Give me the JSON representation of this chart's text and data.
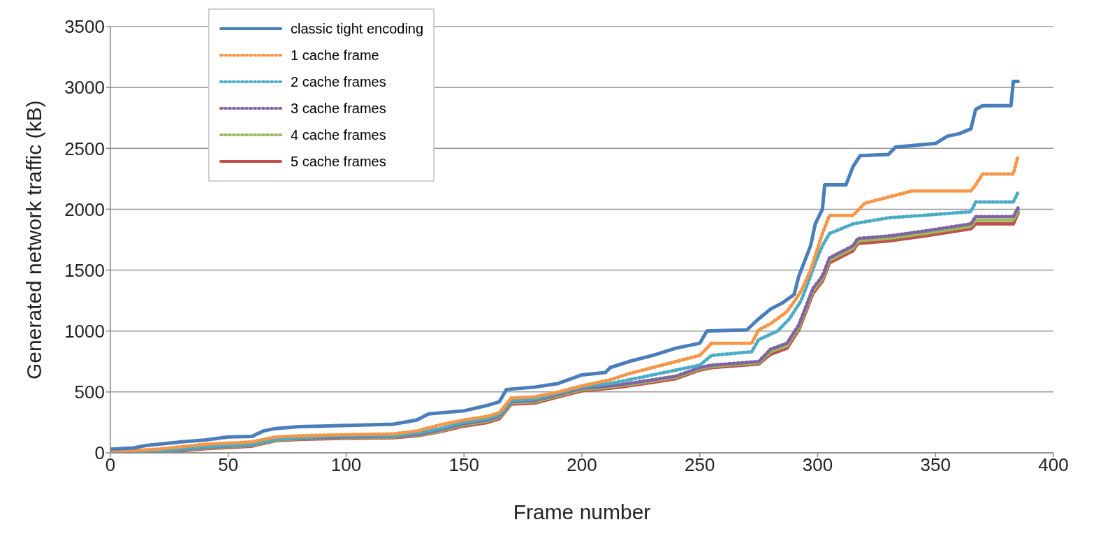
{
  "chart_data": {
    "type": "line",
    "xlabel": "Frame number",
    "ylabel": "Generated network traffic (kB)",
    "xlim": [
      0,
      400
    ],
    "xticks": [
      0,
      50,
      100,
      150,
      200,
      250,
      300,
      350,
      400
    ],
    "ylim": [
      0,
      3500
    ],
    "yticks": [
      0,
      500,
      1000,
      1500,
      2000,
      2500,
      3000,
      3500
    ],
    "grid": "y",
    "legend": "top left",
    "marker": "none",
    "series": [
      {
        "name": "classic tight  encoding",
        "color": "#4a7ebb",
        "line_style": "solid",
        "x": [
          0,
          10,
          15,
          20,
          30,
          40,
          50,
          60,
          65,
          70,
          80,
          90,
          100,
          120,
          130,
          135,
          150,
          160,
          165,
          168,
          180,
          190,
          200,
          210,
          212,
          220,
          230,
          240,
          250,
          253,
          270,
          275,
          280,
          285,
          290,
          292,
          295,
          297,
          299,
          302,
          303,
          312,
          315,
          318,
          330,
          333,
          350,
          355,
          360,
          365,
          367,
          370,
          382,
          383,
          385
        ],
        "values": [
          30,
          40,
          60,
          70,
          90,
          105,
          130,
          135,
          180,
          200,
          215,
          220,
          225,
          235,
          270,
          320,
          345,
          390,
          420,
          520,
          540,
          570,
          640,
          660,
          700,
          750,
          800,
          860,
          900,
          1000,
          1010,
          1100,
          1180,
          1230,
          1300,
          1450,
          1600,
          1700,
          1880,
          2000,
          2200,
          2200,
          2350,
          2440,
          2450,
          2510,
          2540,
          2600,
          2620,
          2660,
          2820,
          2850,
          2850,
          3050,
          3050
        ]
      },
      {
        "name": "1 cache frame",
        "color": "#f79646",
        "line_style": "dotted",
        "x": [
          0,
          20,
          40,
          60,
          70,
          80,
          100,
          120,
          130,
          140,
          150,
          160,
          165,
          170,
          180,
          190,
          200,
          205,
          212,
          220,
          230,
          240,
          250,
          255,
          272,
          275,
          280,
          287,
          290,
          293,
          297,
          300,
          302,
          305,
          315,
          320,
          330,
          340,
          365,
          367,
          370,
          383,
          385
        ],
        "values": [
          10,
          30,
          70,
          90,
          130,
          140,
          150,
          155,
          180,
          230,
          270,
          300,
          330,
          450,
          460,
          500,
          550,
          570,
          600,
          650,
          700,
          750,
          800,
          900,
          900,
          1010,
          1060,
          1160,
          1240,
          1330,
          1500,
          1680,
          1800,
          1950,
          1950,
          2050,
          2100,
          2150,
          2150,
          2200,
          2290,
          2290,
          2440
        ]
      },
      {
        "name": "2 cache frames",
        "color": "#4bacc6",
        "line_style": "dotted",
        "x": [
          0,
          20,
          40,
          60,
          70,
          80,
          100,
          120,
          130,
          140,
          150,
          160,
          165,
          170,
          180,
          190,
          200,
          212,
          220,
          230,
          240,
          250,
          255,
          272,
          275,
          283,
          288,
          293,
          296,
          299,
          302,
          305,
          315,
          330,
          345,
          365,
          367,
          383,
          385
        ],
        "values": [
          5,
          15,
          50,
          70,
          110,
          125,
          140,
          140,
          160,
          200,
          250,
          280,
          310,
          430,
          440,
          490,
          540,
          570,
          600,
          640,
          680,
          720,
          800,
          830,
          930,
          1000,
          1100,
          1250,
          1400,
          1560,
          1700,
          1800,
          1880,
          1930,
          1950,
          1980,
          2060,
          2060,
          2140
        ]
      },
      {
        "name": "3 cache frames",
        "color": "#8064a2",
        "line_style": "dotted",
        "x": [
          0,
          20,
          40,
          60,
          70,
          80,
          100,
          120,
          130,
          140,
          150,
          160,
          165,
          170,
          180,
          190,
          200,
          212,
          220,
          230,
          240,
          250,
          255,
          275,
          280,
          287,
          292,
          295,
          298,
          302,
          305,
          315,
          317,
          330,
          345,
          365,
          367,
          383,
          385
        ],
        "values": [
          0,
          10,
          45,
          65,
          110,
          120,
          130,
          135,
          150,
          190,
          240,
          270,
          300,
          420,
          430,
          480,
          530,
          550,
          570,
          600,
          630,
          700,
          720,
          750,
          850,
          900,
          1050,
          1200,
          1350,
          1450,
          1600,
          1700,
          1760,
          1780,
          1820,
          1880,
          1940,
          1940,
          2010
        ]
      },
      {
        "name": "4 cache frames",
        "color": "#9bbb59",
        "line_style": "dotted",
        "x": [
          0,
          20,
          40,
          60,
          70,
          80,
          100,
          120,
          130,
          140,
          150,
          160,
          165,
          170,
          180,
          190,
          200,
          212,
          220,
          230,
          240,
          250,
          255,
          275,
          280,
          287,
          292,
          295,
          298,
          302,
          305,
          315,
          317,
          330,
          345,
          365,
          367,
          383,
          385
        ],
        "values": [
          0,
          5,
          40,
          60,
          105,
          115,
          125,
          130,
          145,
          180,
          230,
          260,
          290,
          410,
          420,
          470,
          520,
          540,
          560,
          590,
          620,
          690,
          710,
          740,
          830,
          880,
          1030,
          1180,
          1330,
          1430,
          1580,
          1680,
          1740,
          1760,
          1800,
          1860,
          1910,
          1910,
          1990
        ]
      },
      {
        "name": "5 cache frames",
        "color": "#c0504d",
        "line_style": "solid",
        "x": [
          0,
          20,
          40,
          60,
          70,
          80,
          100,
          120,
          130,
          140,
          150,
          160,
          165,
          170,
          180,
          190,
          200,
          212,
          220,
          230,
          240,
          250,
          255,
          275,
          280,
          287,
          292,
          295,
          298,
          302,
          305,
          315,
          317,
          330,
          345,
          365,
          367,
          383,
          385
        ],
        "values": [
          0,
          0,
          35,
          55,
          100,
          110,
          120,
          125,
          140,
          175,
          220,
          250,
          280,
          400,
          410,
          460,
          510,
          530,
          550,
          580,
          610,
          680,
          700,
          730,
          810,
          860,
          1010,
          1160,
          1310,
          1410,
          1560,
          1660,
          1720,
          1740,
          1780,
          1840,
          1880,
          1880,
          1970
        ]
      }
    ]
  }
}
